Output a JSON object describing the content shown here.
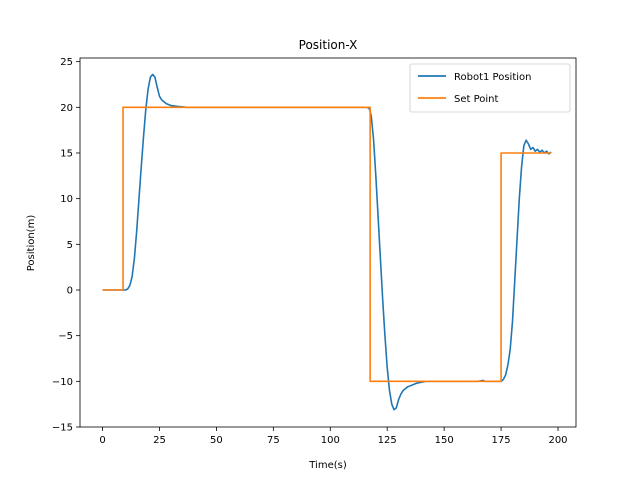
{
  "chart_data": {
    "type": "line",
    "title": "Position-X",
    "xlabel": "Time(s)",
    "ylabel": "Position(m)",
    "xlim": [
      -9.9,
      207.9
    ],
    "ylim": [
      -15,
      25.4
    ],
    "xticks": [
      0,
      25,
      50,
      75,
      100,
      125,
      150,
      175,
      200
    ],
    "xtick_labels": [
      "0",
      "25",
      "50",
      "75",
      "100",
      "125",
      "150",
      "175",
      "200"
    ],
    "yticks": [
      -15,
      -10,
      -5,
      0,
      5,
      10,
      15,
      20,
      25
    ],
    "ytick_labels": [
      "−15",
      "−10",
      "−5",
      "0",
      "5",
      "10",
      "15",
      "20",
      "25"
    ],
    "grid": false,
    "legend": "top-right",
    "series": [
      {
        "name": "Robot1 Position",
        "color": "#1f77b4",
        "x": [
          0,
          9,
          10,
          11,
          12,
          13,
          14,
          15,
          16,
          17,
          18,
          19,
          20,
          21,
          22,
          23,
          24,
          25,
          26,
          27,
          28,
          30,
          33,
          37,
          45,
          60,
          80,
          100,
          110,
          115,
          116,
          117,
          117.5,
          118,
          119,
          120,
          121,
          122,
          123,
          124,
          125,
          126,
          127,
          128,
          129,
          130,
          131,
          132,
          134,
          136,
          138,
          140,
          142,
          144,
          146,
          150,
          155,
          160,
          165,
          167,
          168,
          170,
          175,
          176,
          177,
          178,
          179,
          180,
          181,
          182,
          183,
          184,
          185,
          186,
          187,
          188,
          189,
          190,
          191,
          192,
          193,
          194,
          195,
          196,
          197
        ],
        "y": [
          0,
          0,
          0,
          0.1,
          0.5,
          1.5,
          3.5,
          6.5,
          10,
          13.5,
          16.8,
          19.8,
          22,
          23.3,
          23.6,
          23.3,
          22.2,
          21.2,
          20.8,
          20.6,
          20.4,
          20.2,
          20.1,
          20,
          20,
          20,
          20,
          20,
          20,
          20,
          20,
          19.9,
          19.6,
          19,
          16.5,
          12.5,
          8,
          3.5,
          -1,
          -5,
          -8.5,
          -11,
          -12.5,
          -13.1,
          -12.9,
          -12,
          -11.4,
          -11,
          -10.6,
          -10.4,
          -10.2,
          -10.1,
          -10,
          -10,
          -10,
          -10,
          -10,
          -10,
          -10,
          -9.9,
          -10,
          -10,
          -10,
          -9.8,
          -9.3,
          -8.2,
          -6.5,
          -3.5,
          1,
          5.5,
          10,
          13.5,
          15.8,
          16.4,
          16,
          15.4,
          15.6,
          15.2,
          15.4,
          15.1,
          15.3,
          15,
          15.2,
          14.9,
          15.1
        ]
      },
      {
        "name": "Set Point",
        "color": "#ff7f0e",
        "x": [
          0,
          9,
          9,
          117.5,
          117.5,
          175,
          175,
          197
        ],
        "y": [
          0,
          0,
          20,
          20,
          -10,
          -10,
          15,
          15
        ]
      }
    ]
  }
}
